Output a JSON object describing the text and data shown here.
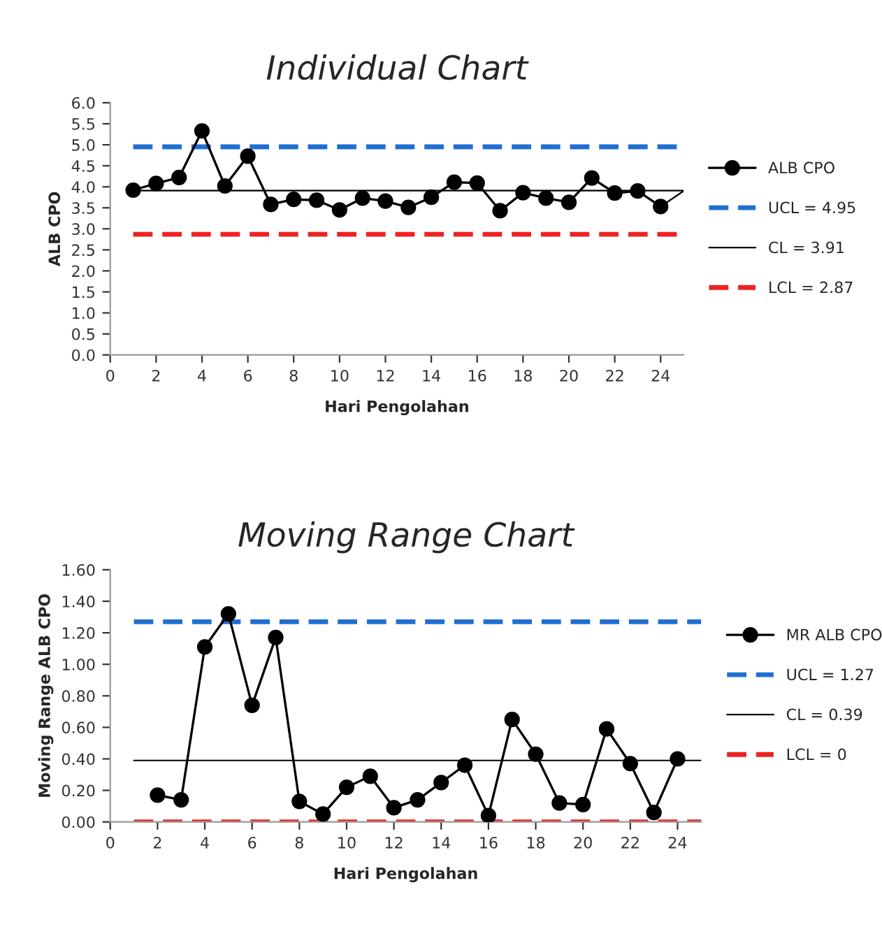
{
  "chart_data": [
    {
      "type": "line",
      "title": "Individual Chart",
      "xlabel": "Hari Pengolahan",
      "ylabel": "ALB CPO",
      "xlim": [
        0,
        25
      ],
      "xticks": [
        0,
        2,
        4,
        6,
        8,
        10,
        12,
        14,
        16,
        18,
        20,
        22,
        24
      ],
      "ylim": [
        0,
        6
      ],
      "yticks": [
        {
          "value": 0,
          "label": "0.0"
        },
        {
          "value": 0.5,
          "label": "0.5"
        },
        {
          "value": 1,
          "label": "1.0"
        },
        {
          "value": 1.5,
          "label": "1.5"
        },
        {
          "value": 2,
          "label": "2.0"
        },
        {
          "value": 2.5,
          "label": "2.5"
        },
        {
          "value": 3,
          "label": "3.0"
        },
        {
          "value": 3.5,
          "label": "3.5"
        },
        {
          "value": 4,
          "label": "4.0"
        },
        {
          "value": 4.5,
          "label": "4.5"
        },
        {
          "value": 5,
          "label": "5.0"
        },
        {
          "value": 5.5,
          "label": "5.5"
        },
        {
          "value": 6,
          "label": "6.0"
        }
      ],
      "grid": false,
      "legend": "right",
      "series": [
        {
          "name": "ALB CPO",
          "color": "#000000",
          "marker": "circle",
          "line_style": "solid",
          "x": [
            1,
            2,
            3,
            4,
            5,
            6,
            7,
            8,
            9,
            10,
            11,
            12,
            13,
            14,
            15,
            16,
            17,
            18,
            19,
            20,
            21,
            22,
            23,
            24
          ],
          "values": [
            3.92,
            4.08,
            4.22,
            5.33,
            4.02,
            4.73,
            3.58,
            3.7,
            3.68,
            3.45,
            3.73,
            3.66,
            3.51,
            3.75,
            4.11,
            4.09,
            3.43,
            3.86,
            3.73,
            3.63,
            4.21,
            3.85,
            3.9,
            3.53
          ]
        },
        {
          "color": "#000000",
          "marker": "none",
          "line_style": "solid",
          "x": [
            24,
            25
          ],
          "values": [
            3.53,
            3.9
          ]
        },
        {
          "name": "UCL = 4.95",
          "color": "#1f6fd0",
          "marker": "none",
          "line_style": "dashed",
          "x": [
            1,
            25
          ],
          "values": [
            4.95,
            4.95
          ]
        },
        {
          "name": "CL = 3.91",
          "color": "#000000",
          "marker": "none",
          "line_style": "solid",
          "x": [
            1,
            25
          ],
          "values": [
            3.91,
            3.91
          ]
        },
        {
          "name": "LCL = 2.87",
          "color": "#ee2222",
          "marker": "none",
          "line_style": "dashed",
          "x": [
            1,
            25
          ],
          "values": [
            2.87,
            2.87
          ]
        }
      ]
    },
    {
      "type": "line",
      "title": "Moving Range Chart",
      "xlabel": "Hari Pengolahan",
      "ylabel": "Moving Range ALB CPO",
      "xlim": [
        0,
        25
      ],
      "xticks": [
        0,
        2,
        4,
        6,
        8,
        10,
        12,
        14,
        16,
        18,
        20,
        22,
        24
      ],
      "ylim": [
        0,
        1.6
      ],
      "yticks": [
        {
          "value": 0,
          "label": "0.00"
        },
        {
          "value": 0.2,
          "label": "0.20"
        },
        {
          "value": 0.4,
          "label": "0.40"
        },
        {
          "value": 0.6,
          "label": "0.60"
        },
        {
          "value": 0.8,
          "label": "0.80"
        },
        {
          "value": 1,
          "label": "1.00"
        },
        {
          "value": 1.2,
          "label": "1.20"
        },
        {
          "value": 1.4,
          "label": "1.40"
        },
        {
          "value": 1.6,
          "label": "1.60"
        }
      ],
      "grid": false,
      "legend": "right",
      "series": [
        {
          "name": "MR ALB CPO",
          "color": "#000000",
          "marker": "circle",
          "line_style": "solid",
          "x": [
            2,
            3,
            4,
            5,
            6,
            7,
            8,
            9,
            10,
            11,
            12,
            13,
            14,
            15,
            16,
            17,
            18,
            19,
            20,
            21,
            22,
            23,
            24
          ],
          "values": [
            0.17,
            0.14,
            1.11,
            1.32,
            0.74,
            1.17,
            0.13,
            0.05,
            0.22,
            0.29,
            0.09,
            0.14,
            0.25,
            0.36,
            0.04,
            0.65,
            0.43,
            0.12,
            0.11,
            0.59,
            0.37,
            0.06,
            0.4
          ]
        },
        {
          "name": "UCL = 1.27",
          "color": "#1f6fd0",
          "marker": "none",
          "line_style": "dashed",
          "x": [
            1,
            25
          ],
          "values": [
            1.27,
            1.27
          ]
        },
        {
          "name": "CL = 0.39",
          "color": "#000000",
          "marker": "none",
          "line_style": "solid",
          "x": [
            1,
            25
          ],
          "values": [
            0.39,
            0.39
          ]
        },
        {
          "name": "LCL = 0",
          "color": "#ee2222",
          "marker": "none",
          "line_style": "dashed",
          "x": [
            1,
            25
          ],
          "values": [
            0,
            0
          ]
        }
      ]
    }
  ]
}
